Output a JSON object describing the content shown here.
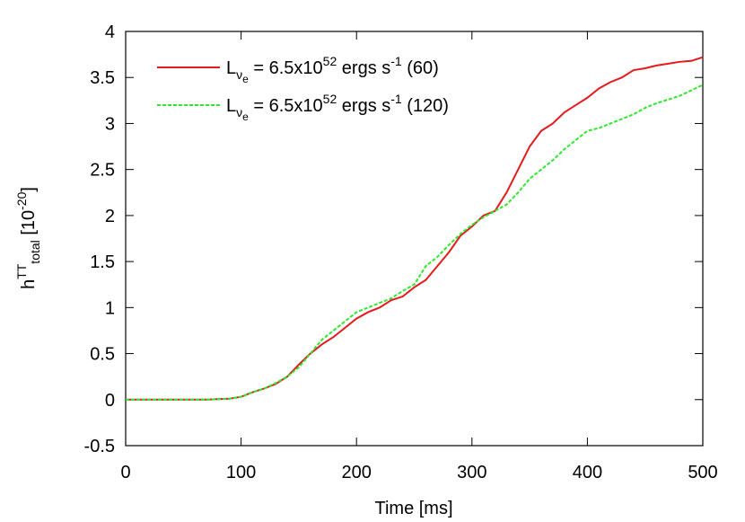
{
  "chart_data": {
    "type": "line",
    "x_label": "Time [ms]",
    "y_label": [
      {
        "text": "h"
      },
      {
        "text": "TT",
        "pos": "sup"
      },
      {
        "text": "total",
        "pos": "sub"
      },
      {
        "text": " [10"
      },
      {
        "text": "-20",
        "pos": "sup"
      },
      {
        "text": "]"
      }
    ],
    "x": [
      0,
      10,
      20,
      30,
      40,
      50,
      60,
      70,
      80,
      90,
      100,
      110,
      120,
      130,
      140,
      150,
      160,
      170,
      180,
      190,
      200,
      210,
      220,
      230,
      240,
      250,
      260,
      270,
      280,
      290,
      300,
      310,
      320,
      330,
      340,
      350,
      360,
      370,
      380,
      390,
      400,
      410,
      420,
      430,
      440,
      450,
      460,
      470,
      480,
      490,
      500
    ],
    "series": [
      {
        "name": [
          {
            "text": "L"
          },
          {
            "text": "ν",
            "pos": "sub"
          },
          {
            "text": "e",
            "pos": "subsub"
          },
          {
            "text": " = 6.5x10"
          },
          {
            "text": "52",
            "pos": "sup"
          },
          {
            "text": " ergs s"
          },
          {
            "text": "-1",
            "pos": "sup"
          },
          {
            "text": " (60)"
          }
        ],
        "color": "#e41a1c",
        "dash": "",
        "values": [
          0,
          0,
          0,
          0,
          0,
          0,
          0,
          0,
          0.005,
          0.01,
          0.03,
          0.08,
          0.12,
          0.17,
          0.25,
          0.38,
          0.5,
          0.6,
          0.68,
          0.78,
          0.88,
          0.95,
          1.0,
          1.08,
          1.12,
          1.22,
          1.3,
          1.45,
          1.6,
          1.78,
          1.88,
          2.0,
          2.05,
          2.25,
          2.5,
          2.75,
          2.92,
          3.0,
          3.12,
          3.2,
          3.28,
          3.38,
          3.45,
          3.5,
          3.58,
          3.6,
          3.63,
          3.65,
          3.67,
          3.68,
          3.72
        ]
      },
      {
        "name": [
          {
            "text": "L"
          },
          {
            "text": "ν",
            "pos": "sub"
          },
          {
            "text": "e",
            "pos": "subsub"
          },
          {
            "text": " = 6.5x10"
          },
          {
            "text": "52",
            "pos": "sup"
          },
          {
            "text": " ergs s"
          },
          {
            "text": "-1",
            "pos": "sup"
          },
          {
            "text": " (120)"
          }
        ],
        "color": "#2ee82e",
        "dash": "4 2",
        "values": [
          0,
          0,
          0,
          0,
          0,
          0,
          0,
          0,
          0.005,
          0.01,
          0.03,
          0.08,
          0.12,
          0.18,
          0.25,
          0.35,
          0.5,
          0.65,
          0.75,
          0.85,
          0.95,
          1.0,
          1.05,
          1.1,
          1.18,
          1.25,
          1.45,
          1.55,
          1.68,
          1.8,
          1.9,
          1.98,
          2.05,
          2.12,
          2.25,
          2.4,
          2.5,
          2.6,
          2.72,
          2.82,
          2.92,
          2.95,
          3.0,
          3.05,
          3.1,
          3.17,
          3.22,
          3.26,
          3.3,
          3.36,
          3.42
        ]
      }
    ],
    "xlim": [
      0,
      500
    ],
    "xticks": [
      0,
      100,
      200,
      300,
      400,
      500
    ],
    "ylim": [
      -0.5,
      4
    ],
    "yticks": [
      -0.5,
      0,
      0.5,
      1,
      1.5,
      2,
      2.5,
      3,
      3.5,
      4
    ],
    "grid": false
  }
}
